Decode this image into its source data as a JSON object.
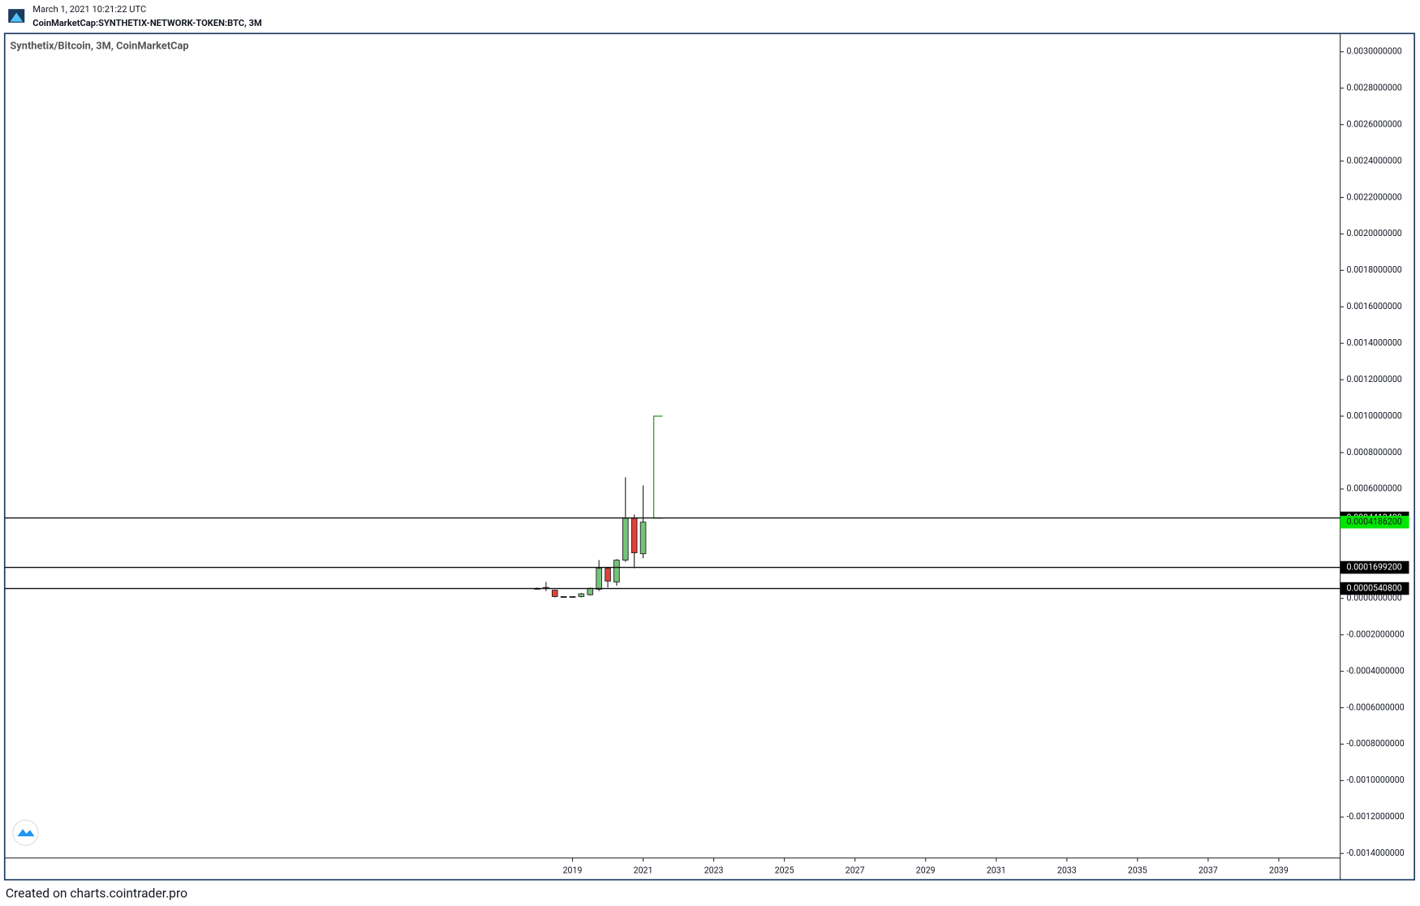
{
  "header": {
    "timestamp": "March 1, 2021 10:21:22 UTC",
    "symbol": "CoinMarketCap:SYNTHETIX-NETWORK-TOKEN:BTC, 3M"
  },
  "footer": "Created on charts.cointrader.pro",
  "chart_data": {
    "type": "candlestick",
    "title": "Synthetix/Bitcoin, 3M, CoinMarketCap",
    "x": [
      2018.0,
      2018.25,
      2018.5,
      2018.75,
      2019.0,
      2019.25,
      2019.5,
      2019.75,
      2020.0,
      2020.25,
      2020.5,
      2020.75,
      2021.0
    ],
    "open": [
      5.5e-05,
      6e-05,
      4.5e-05,
      1e-05,
      8e-06,
      1e-05,
      2e-05,
      5e-05,
      0.000165,
      9e-05,
      0.00021,
      0.00044,
      0.000245
    ],
    "high": [
      6e-05,
      9e-05,
      4.5e-05,
      1.2e-05,
      1.2e-05,
      3e-05,
      6e-05,
      0.00021,
      0.00017,
      0.000215,
      0.000665,
      0.00046,
      0.00062
    ],
    "low": [
      5e-05,
      4e-05,
      5e-06,
      3e-06,
      4e-06,
      5e-06,
      1.5e-05,
      4e-05,
      6e-05,
      7e-05,
      0.0002,
      0.000165,
      0.00022
    ],
    "close": [
      5.5e-05,
      5.5e-05,
      1e-05,
      8e-06,
      1e-05,
      2.5e-05,
      5.5e-05,
      0.000165,
      9.5e-05,
      0.00021,
      0.00044,
      0.00025,
      0.00041862
    ],
    "up_color": "#76c27a",
    "down_color": "#e0403a",
    "xlim": [
      2002.92,
      2040.74
    ],
    "xticks": [
      2019,
      2021,
      2023,
      2025,
      2027,
      2029,
      2031,
      2033,
      2035,
      2037,
      2039
    ],
    "ylim": [
      -0.001425,
      0.0031
    ],
    "yticks": [
      {
        "value": 0.003,
        "label": "0.0030000000"
      },
      {
        "value": 0.0028,
        "label": "0.0028000000"
      },
      {
        "value": 0.0026,
        "label": "0.0026000000"
      },
      {
        "value": 0.0024,
        "label": "0.0024000000"
      },
      {
        "value": 0.0022,
        "label": "0.0022000000"
      },
      {
        "value": 0.002,
        "label": "0.0020000000"
      },
      {
        "value": 0.0018,
        "label": "0.0018000000"
      },
      {
        "value": 0.0016,
        "label": "0.0016000000"
      },
      {
        "value": 0.0014,
        "label": "0.0014000000"
      },
      {
        "value": 0.0012,
        "label": "0.0012000000"
      },
      {
        "value": 0.001,
        "label": "0.0010000000"
      },
      {
        "value": 0.0008,
        "label": "0.0008000000"
      },
      {
        "value": 0.0006,
        "label": "0.0006000000"
      },
      {
        "value": 0,
        "label": "0.0000000000"
      },
      {
        "value": -0.0002,
        "label": "-0.0002000000"
      },
      {
        "value": -0.0004,
        "label": "-0.0004000000"
      },
      {
        "value": -0.0006,
        "label": "-0.0006000000"
      },
      {
        "value": -0.0008,
        "label": "-0.0008000000"
      },
      {
        "value": -0.001,
        "label": "-0.0010000000"
      },
      {
        "value": -0.0012,
        "label": "-0.0012000000"
      },
      {
        "value": -0.0014,
        "label": "-0.0014000000"
      }
    ],
    "levels": [
      {
        "value": 0.00044134,
        "label": "0.0004413400"
      },
      {
        "value": 0.00016992,
        "label": "0.0001699200"
      },
      {
        "value": 5.408e-05,
        "label": "0.0000540800"
      }
    ],
    "last_price": {
      "value": 0.00041862,
      "label": "0.0004186200",
      "color": "#00e600"
    },
    "bracket": {
      "x": [
        2021.3,
        2021.55
      ],
      "y": [
        0.00044,
        0.001
      ],
      "color": "#3c9a3c"
    }
  }
}
